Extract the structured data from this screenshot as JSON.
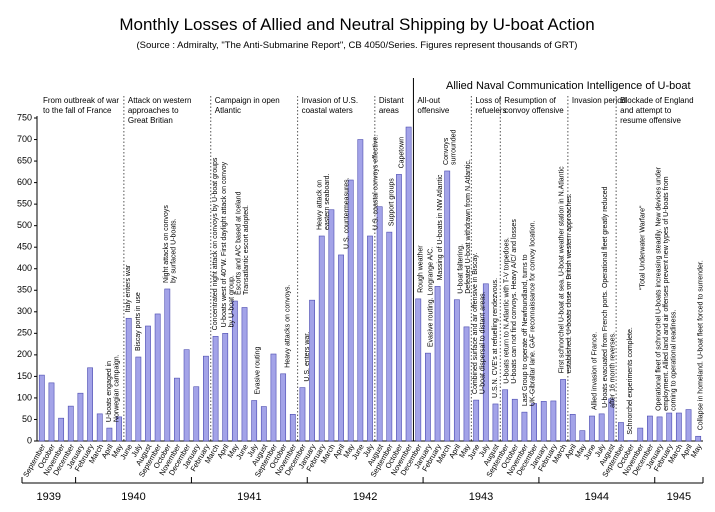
{
  "chart_data": {
    "type": "bar",
    "title": "Monthly Losses of Allied and Neutral Shipping by U-boat Action",
    "subtitle": "(Source : Admiralty, \"The Anti-Submarine Report\", CB 4050/Series. Figures represent thousands of GRT)",
    "intelligence_note": "Allied Naval Communication Intelligence of U-boat",
    "categories": [
      "September",
      "October",
      "November",
      "December",
      "January",
      "February",
      "March",
      "April",
      "May",
      "June",
      "July",
      "August",
      "September",
      "October",
      "November",
      "December",
      "January",
      "February",
      "March",
      "April",
      "May",
      "June",
      "July",
      "August",
      "September",
      "October",
      "November",
      "December",
      "January",
      "February",
      "March",
      "April",
      "May",
      "June",
      "July",
      "August",
      "September",
      "October",
      "November",
      "December",
      "January",
      "February",
      "March",
      "April",
      "May",
      "June",
      "July",
      "August",
      "September",
      "October",
      "November",
      "December",
      "January",
      "February",
      "March",
      "April",
      "May",
      "June",
      "July",
      "August",
      "September",
      "October",
      "November",
      "December",
      "January",
      "February",
      "March",
      "April",
      "May"
    ],
    "years": [
      "1939",
      "1940",
      "1941",
      "1942",
      "1943",
      "1944",
      "1945"
    ],
    "values": [
      153,
      135,
      53,
      81,
      111,
      170,
      63,
      30,
      56,
      285,
      195,
      267,
      295,
      353,
      146,
      212,
      126,
      197,
      243,
      250,
      325,
      310,
      94,
      80,
      202,
      156,
      62,
      124,
      327,
      476,
      537,
      432,
      606,
      700,
      476,
      544,
      485,
      619,
      729,
      330,
      204,
      359,
      627,
      328,
      265,
      95,
      365,
      86,
      119,
      97,
      67,
      87,
      92,
      93,
      143,
      62,
      24,
      58,
      63,
      98,
      43,
      1,
      30,
      58,
      56,
      65,
      65,
      73,
      11
    ],
    "color": "#a3a3e8",
    "ylim": [
      0,
      750
    ],
    "yticks": [
      0,
      50,
      100,
      150,
      200,
      250,
      300,
      350,
      400,
      450,
      500,
      550,
      600,
      650,
      700,
      750
    ],
    "periods": [
      [
        "From outbreak of war",
        "to the fall of France"
      ],
      [
        "Attack on western",
        "approaches to",
        "Great Britian"
      ],
      [
        "Campaign in open",
        "Atlantic"
      ],
      [
        "Invasion of U.S.",
        "coastal waters"
      ],
      [
        "Distant",
        "areas"
      ],
      [
        "All-out",
        "offensive"
      ],
      [
        "Loss of",
        "refuelers"
      ],
      [
        "Resumption of",
        "convoy offensive"
      ],
      [
        "Invasion period"
      ],
      [
        "Blockade of England",
        "and attempt to",
        "resume offensive"
      ]
    ],
    "annotations": [
      [
        "U-boats engaged in",
        "Norwegian campaign."
      ],
      [
        "Italy enters war"
      ],
      [
        "Biscay ports in use"
      ],
      [
        "Night attacks on convoys",
        "by surfaced U-boats."
      ],
      [
        "Concentrated night attack on convoys by U-boat groups"
      ],
      [
        "U-boats west of 40°W. First daylight attack on convoy",
        "by U-boat group."
      ],
      [
        "Escorts and A/C based at Iceland",
        "Transatlantic escort adopted."
      ],
      [
        "Evasive routing"
      ],
      [
        "Heavy attacks on convoys."
      ],
      [
        "U.S. enters war."
      ],
      [
        "Heavy attack on",
        "eastern seaboard."
      ],
      [
        "U.S. countermeasures."
      ],
      [
        "U.S. coastal convoys effective."
      ],
      [
        "Support groups"
      ],
      [
        "Capetown"
      ],
      [
        "Rough weather"
      ],
      [
        "Evasive routing. Longrange A/C."
      ],
      [
        "Massing of U-boats in NW Atlantic"
      ],
      [
        "Convoys",
        "surrounded"
      ],
      [
        "U-boat faltering.",
        "Defeated U-boat withdrawn from N.Atlantic."
      ],
      [
        "Combined surface and air offensive in Biscay.",
        "U-boat dispersal to distant areas."
      ],
      [
        "U.S.N. CVE's at refuelling rendezvous."
      ],
      [
        "U-boats return to N.Atlantic with T-V torpedoes.",
        "U-boats can not find convoys. Heavy A/C/ and losses"
      ],
      [
        "Last Group to operate off Newfoundland, turns to",
        "UK-Gibraltar lane. GAF reconnaissance for convoy location."
      ],
      [
        "First schnorchel U-boat at sea. U-boat weather station in N.Atlantic",
        "established. U-boats close on British western approaches."
      ],
      [
        "Allied invasion of France."
      ],
      [
        "U-boats evacuated from French ports. Operational fleet greatly reduced",
        "after 16 month reverses."
      ],
      [
        "Schnorchel experiments complete."
      ],
      [
        "\"Total Underwater Warfare\""
      ],
      [
        "Operational fleet of schnorchel U-boats increasing steadily. New devices under",
        "employment. Allied land and air offenses prevent new types of U-boats from",
        "coming to operational readiness."
      ],
      [
        "Collapse in homeland. U-boat fleet forced to surrender."
      ]
    ]
  }
}
